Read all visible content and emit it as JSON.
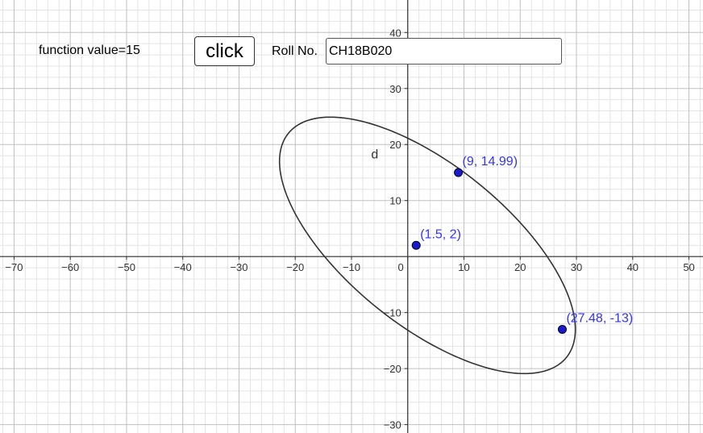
{
  "controls": {
    "function_value_text": "function value=15",
    "click_button_label": "click",
    "roll_label": "Roll No.",
    "roll_value": "CH18B020"
  },
  "axes": {
    "x_ticks": [
      -70,
      -60,
      -50,
      -40,
      -30,
      -20,
      -10,
      0,
      10,
      20,
      30,
      40,
      50
    ],
    "y_ticks": [
      -30,
      -20,
      -10,
      10,
      20,
      30,
      40
    ],
    "xlim": [
      -72.5,
      52.5
    ],
    "ylim": [
      -31.5,
      45.8
    ],
    "grid": true,
    "major_step": 10,
    "minor_step": 2
  },
  "conic": {
    "label": "d",
    "center": [
      3.5,
      2.0
    ],
    "radii": [
      31.8,
      14.3
    ],
    "rotation_deg": -39
  },
  "points": [
    {
      "x": 9,
      "y": 14.99,
      "label": "(9, 14.99)"
    },
    {
      "x": 1.5,
      "y": 2,
      "label": "(1.5, 2)"
    },
    {
      "x": 27.48,
      "y": -13,
      "label": "(27.48, -13)"
    }
  ],
  "colors": {
    "point": "#1a1acc",
    "label": "#3333ff",
    "curve": "#333333",
    "axis": "#333333",
    "major_grid": "#c0c0c0",
    "minor_grid": "#e4e4e4"
  }
}
